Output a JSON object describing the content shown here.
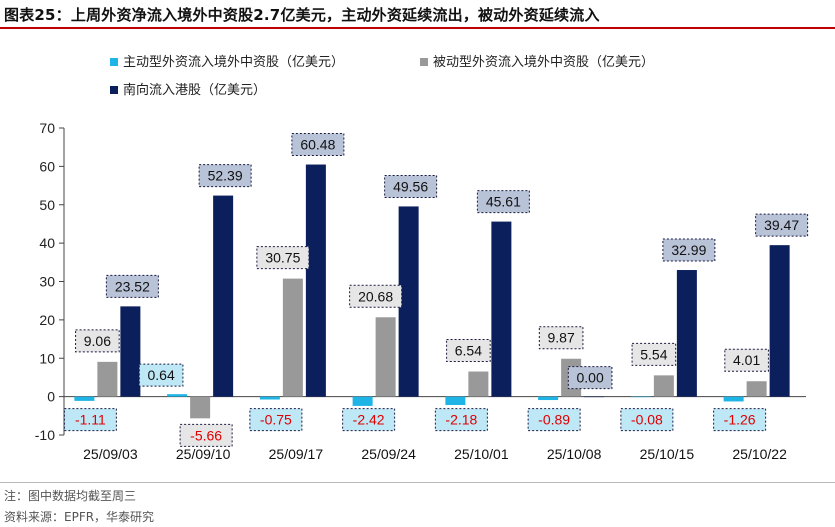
{
  "title": "图表25：上周外资净流入境外中资股2.7亿美元，主动外资延续流出，被动外资延续流入",
  "notes": {
    "note": "注：图中数据均截至周三",
    "source": "资料来源：EPFR，华泰研究"
  },
  "colors": {
    "active": "#1fb4e6",
    "passive": "#999999",
    "southbound": "#0a1f5c",
    "negative_label": "#e00000",
    "label_text": "#111111",
    "title_rule": "#c00000"
  },
  "chart_data": {
    "type": "bar",
    "title": "",
    "xlabel": "",
    "ylabel": "",
    "ylim": [
      -10,
      70
    ],
    "yticks": [
      -10,
      0,
      10,
      20,
      30,
      40,
      50,
      60,
      70
    ],
    "ytick_labels": [
      "-10",
      "0",
      "10",
      "20",
      "30",
      "40",
      "50",
      "60",
      "70"
    ],
    "grid": false,
    "legend_position": "top-left",
    "categories": [
      "25/09/03",
      "25/09/10",
      "25/09/17",
      "25/09/24",
      "25/10/01",
      "25/10/08",
      "25/10/15",
      "25/10/22"
    ],
    "series": [
      {
        "name": "主动型外资流入境外中资股（亿美元）",
        "color_key": "active",
        "values": [
          -1.11,
          0.64,
          -0.75,
          -2.42,
          -2.18,
          -0.89,
          -0.08,
          -1.26
        ],
        "labels": [
          "-1.11",
          "0.64",
          "-0.75",
          "-2.42",
          "-2.18",
          "-0.89",
          "-0.08",
          "-1.26"
        ]
      },
      {
        "name": "被动型外资流入境外中资股（亿美元）",
        "color_key": "passive",
        "values": [
          9.06,
          -5.66,
          30.75,
          20.68,
          6.54,
          9.87,
          5.54,
          4.01
        ],
        "labels": [
          "9.06",
          "-5.66",
          "30.75",
          "20.68",
          "6.54",
          "9.87",
          "5.54",
          "4.01"
        ]
      },
      {
        "name": "南向流入港股（亿美元）",
        "color_key": "southbound",
        "values": [
          23.52,
          52.39,
          60.48,
          49.56,
          45.61,
          0.0,
          32.99,
          39.47
        ],
        "labels": [
          "23.52",
          "52.39",
          "60.48",
          "49.56",
          "45.61",
          "0.00",
          "32.99",
          "39.47"
        ]
      }
    ]
  }
}
